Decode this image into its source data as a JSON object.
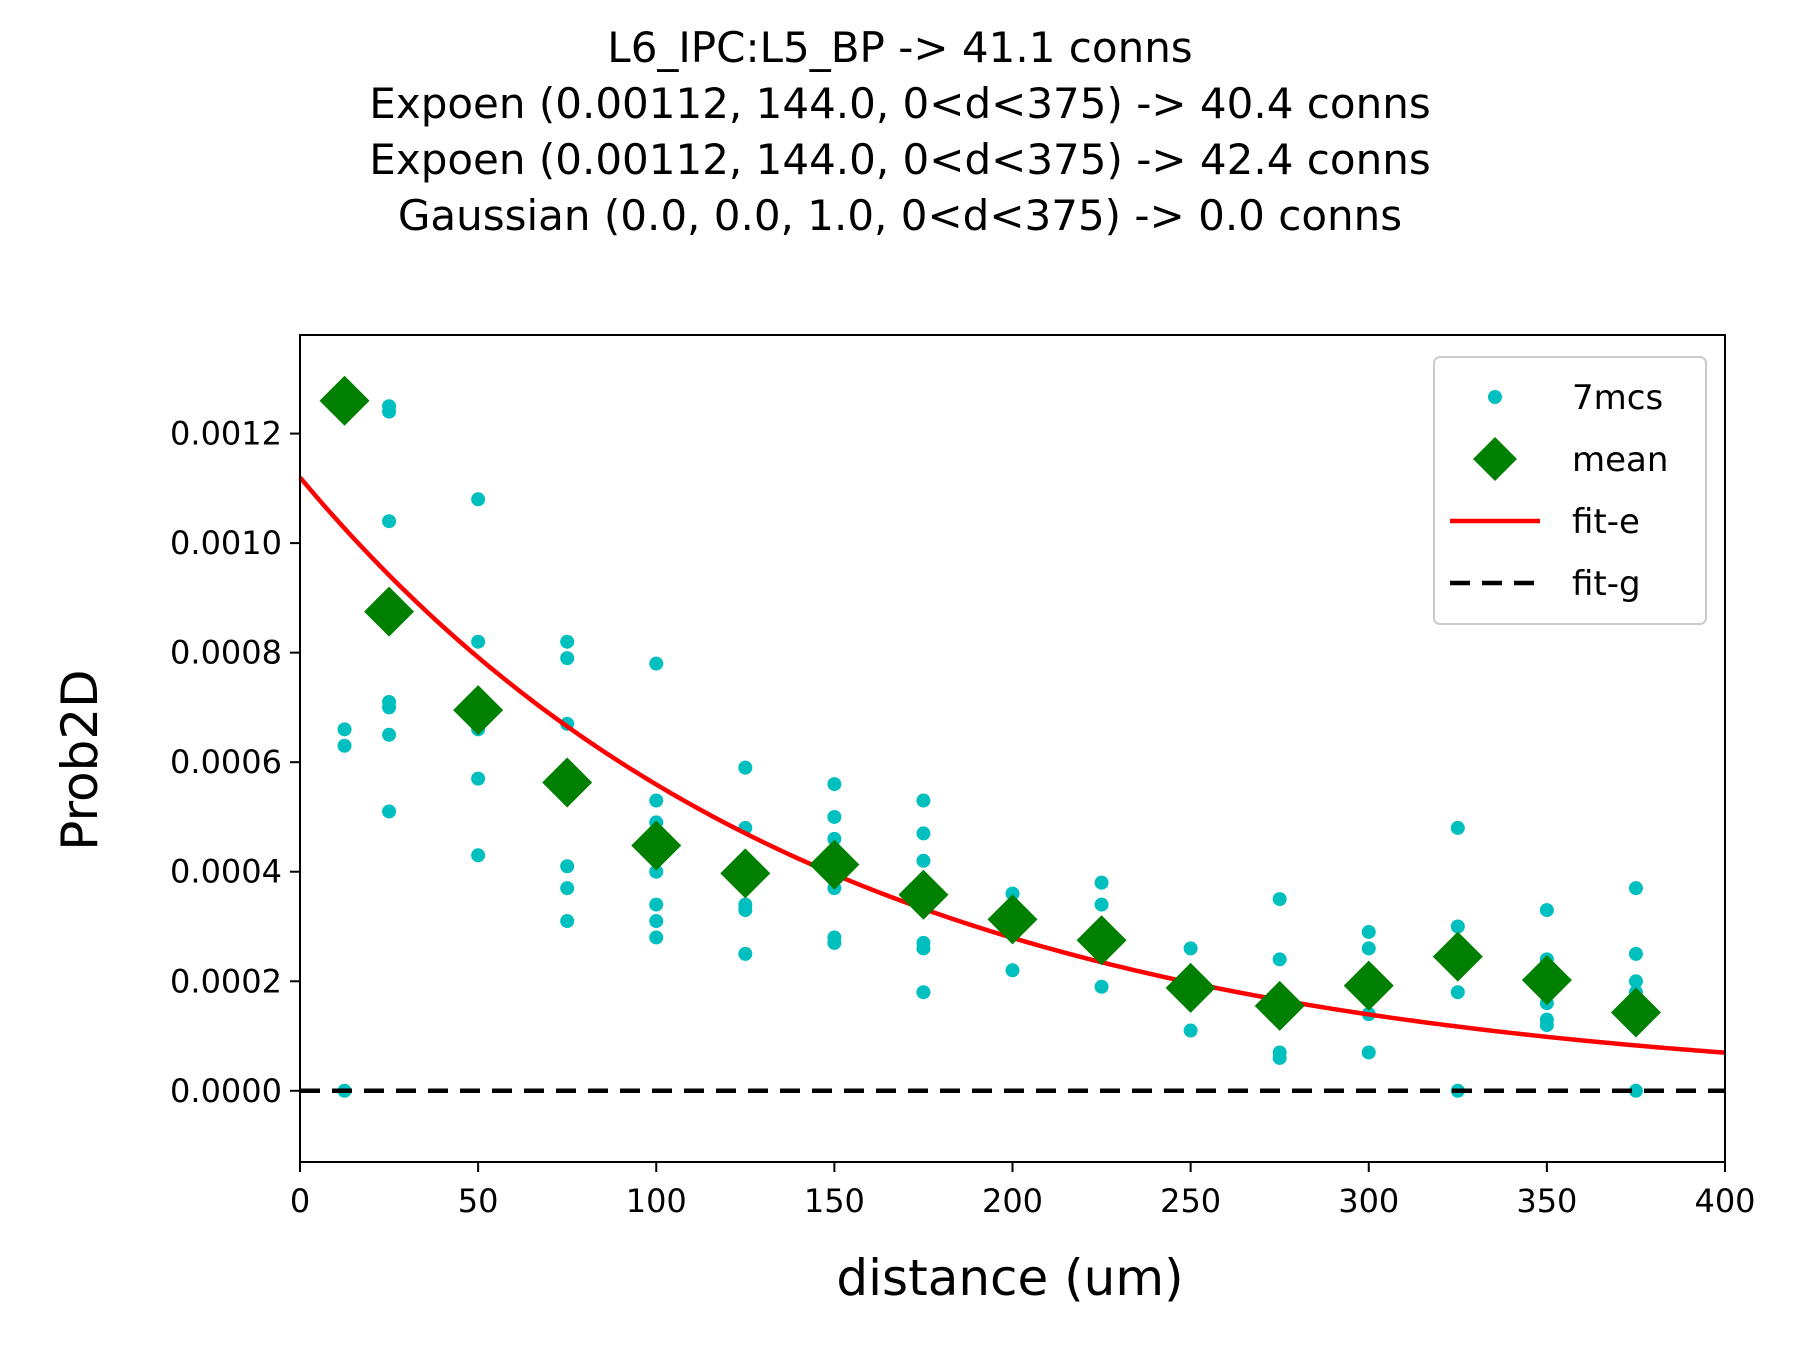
{
  "chart_data": {
    "type": "scatter",
    "title_lines": [
      "L6_IPC:L5_BP -> 41.1 conns",
      "Expoen (0.00112, 144.0, 0<d<375) -> 40.4 conns",
      "Expoen (0.00112, 144.0, 0<d<375) -> 42.4 conns",
      "Gaussian (0.0, 0.0, 1.0, 0<d<375) -> 0.0 conns"
    ],
    "xlabel": "distance (um)",
    "ylabel": "Prob2D",
    "xlim": [
      0,
      400
    ],
    "ylim": [
      -0.00013,
      0.00138
    ],
    "x_ticks": [
      0,
      50,
      100,
      150,
      200,
      250,
      300,
      350,
      400
    ],
    "x_tick_labels": [
      "0",
      "50",
      "100",
      "150",
      "200",
      "250",
      "300",
      "350",
      "400"
    ],
    "y_ticks": [
      0.0,
      0.0002,
      0.0004,
      0.0006,
      0.0008,
      0.001,
      0.0012
    ],
    "y_tick_labels": [
      "0.0000",
      "0.0002",
      "0.0004",
      "0.0006",
      "0.0008",
      "0.0010",
      "0.0012"
    ],
    "grid": false,
    "legend_position": "top-right",
    "series": [
      {
        "name": "7mcs",
        "kind": "points",
        "color": "#00bfbf",
        "points": [
          [
            12.5,
            0.00066
          ],
          [
            12.5,
            0.00063
          ],
          [
            12.5,
            0.0
          ],
          [
            25,
            0.00125
          ],
          [
            25,
            0.00124
          ],
          [
            25,
            0.00104
          ],
          [
            25,
            0.00071
          ],
          [
            25,
            0.0007
          ],
          [
            25,
            0.00065
          ],
          [
            25,
            0.00051
          ],
          [
            50,
            0.00108
          ],
          [
            50,
            0.00082
          ],
          [
            50,
            0.00066
          ],
          [
            50,
            0.00057
          ],
          [
            50,
            0.00043
          ],
          [
            75,
            0.00082
          ],
          [
            75,
            0.00079
          ],
          [
            75,
            0.00067
          ],
          [
            75,
            0.00041
          ],
          [
            75,
            0.00037
          ],
          [
            75,
            0.00031
          ],
          [
            100,
            0.00078
          ],
          [
            100,
            0.00053
          ],
          [
            100,
            0.00049
          ],
          [
            100,
            0.0004
          ],
          [
            100,
            0.00034
          ],
          [
            100,
            0.00031
          ],
          [
            100,
            0.00028
          ],
          [
            125,
            0.00059
          ],
          [
            125,
            0.00048
          ],
          [
            125,
            0.00034
          ],
          [
            125,
            0.00033
          ],
          [
            125,
            0.00025
          ],
          [
            150,
            0.00056
          ],
          [
            150,
            0.0005
          ],
          [
            150,
            0.00046
          ],
          [
            150,
            0.00037
          ],
          [
            150,
            0.00028
          ],
          [
            150,
            0.00027
          ],
          [
            175,
            0.00053
          ],
          [
            175,
            0.00047
          ],
          [
            175,
            0.00042
          ],
          [
            175,
            0.00027
          ],
          [
            175,
            0.00026
          ],
          [
            175,
            0.00018
          ],
          [
            200,
            0.00036
          ],
          [
            200,
            0.00032
          ],
          [
            200,
            0.00022
          ],
          [
            225,
            0.00038
          ],
          [
            225,
            0.00034
          ],
          [
            225,
            0.00019
          ],
          [
            250,
            0.00026
          ],
          [
            250,
            0.00019
          ],
          [
            250,
            0.00011
          ],
          [
            275,
            0.00035
          ],
          [
            275,
            0.00024
          ],
          [
            275,
            0.00016
          ],
          [
            275,
            7e-05
          ],
          [
            275,
            6e-05
          ],
          [
            300,
            0.00029
          ],
          [
            300,
            0.00026
          ],
          [
            300,
            0.00014
          ],
          [
            300,
            7e-05
          ],
          [
            325,
            0.00048
          ],
          [
            325,
            0.0003
          ],
          [
            325,
            0.00018
          ],
          [
            325,
            0.0
          ],
          [
            350,
            0.00033
          ],
          [
            350,
            0.00024
          ],
          [
            350,
            0.00016
          ],
          [
            350,
            0.00013
          ],
          [
            350,
            0.00012
          ],
          [
            375,
            0.00037
          ],
          [
            375,
            0.00025
          ],
          [
            375,
            0.0002
          ],
          [
            375,
            0.00018
          ],
          [
            375,
            0.0
          ]
        ]
      },
      {
        "name": "mean",
        "kind": "diamonds",
        "color": "#008000",
        "points": [
          [
            12.5,
            0.00126
          ],
          [
            25,
            0.000875
          ],
          [
            50,
            0.000695
          ],
          [
            75,
            0.000563
          ],
          [
            100,
            0.000448
          ],
          [
            125,
            0.000397
          ],
          [
            150,
            0.000413
          ],
          [
            175,
            0.000358
          ],
          [
            200,
            0.000313
          ],
          [
            225,
            0.000275
          ],
          [
            250,
            0.000188
          ],
          [
            275,
            0.000155
          ],
          [
            300,
            0.000192
          ],
          [
            325,
            0.000245
          ],
          [
            350,
            0.000202
          ],
          [
            375,
            0.000143
          ]
        ]
      },
      {
        "name": "fit-e",
        "kind": "exp-line",
        "color": "#ff0000",
        "amplitude": 0.00112,
        "length": 144.0,
        "x_range": [
          0,
          400
        ]
      },
      {
        "name": "fit-g",
        "kind": "dashed-line",
        "color": "#000000",
        "value": 0.0,
        "x_range": [
          0,
          400
        ]
      }
    ]
  }
}
